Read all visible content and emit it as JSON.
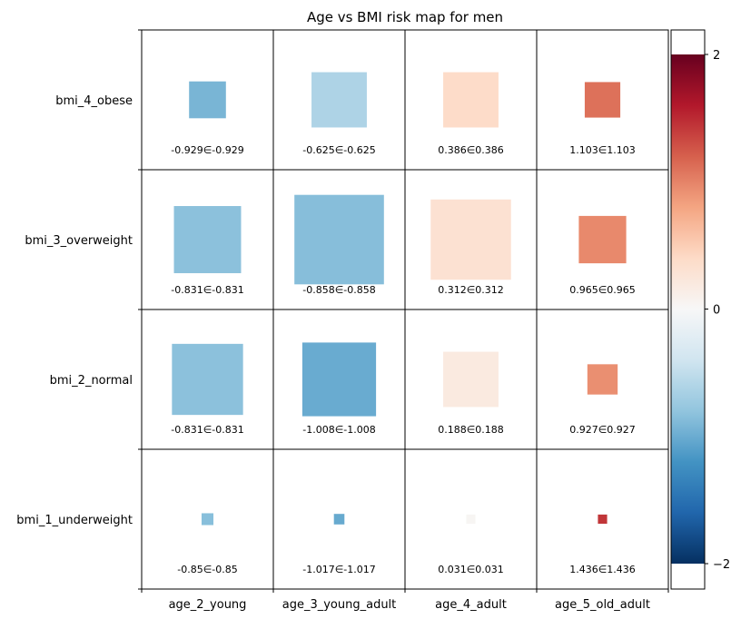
{
  "chart_data": {
    "type": "heatmap",
    "title": "Age vs BMI risk map for men",
    "xlabel": "",
    "ylabel": "",
    "x_categories": [
      "age_2_young",
      "age_3_young_adult",
      "age_4_adult",
      "age_5_old_adult"
    ],
    "y_categories": [
      "bmi_4_obese",
      "bmi_3_overweight",
      "bmi_2_normal",
      "bmi_1_underweight"
    ],
    "cells": [
      {
        "x": "age_2_young",
        "y": "bmi_4_obese",
        "value": -0.929,
        "label": "-0.929∈-0.929",
        "size": 0.28
      },
      {
        "x": "age_3_young_adult",
        "y": "bmi_4_obese",
        "value": -0.625,
        "label": "-0.625∈-0.625",
        "size": 0.42
      },
      {
        "x": "age_4_adult",
        "y": "bmi_4_obese",
        "value": 0.386,
        "label": "0.386∈0.386",
        "size": 0.42
      },
      {
        "x": "age_5_old_adult",
        "y": "bmi_4_obese",
        "value": 1.103,
        "label": "1.103∈1.103",
        "size": 0.27
      },
      {
        "x": "age_2_young",
        "y": "bmi_3_overweight",
        "value": -0.831,
        "label": "-0.831∈-0.831",
        "size": 0.51
      },
      {
        "x": "age_3_young_adult",
        "y": "bmi_3_overweight",
        "value": -0.858,
        "label": "-0.858∈-0.858",
        "size": 0.68
      },
      {
        "x": "age_4_adult",
        "y": "bmi_3_overweight",
        "value": 0.312,
        "label": "0.312∈0.312",
        "size": 0.61
      },
      {
        "x": "age_5_old_adult",
        "y": "bmi_3_overweight",
        "value": 0.965,
        "label": "0.965∈0.965",
        "size": 0.36
      },
      {
        "x": "age_2_young",
        "y": "bmi_2_normal",
        "value": -0.831,
        "label": "-0.831∈-0.831",
        "size": 0.54
      },
      {
        "x": "age_3_young_adult",
        "y": "bmi_2_normal",
        "value": -1.008,
        "label": "-1.008∈-1.008",
        "size": 0.56
      },
      {
        "x": "age_4_adult",
        "y": "bmi_2_normal",
        "value": 0.188,
        "label": "0.188∈0.188",
        "size": 0.42
      },
      {
        "x": "age_5_old_adult",
        "y": "bmi_2_normal",
        "value": 0.927,
        "label": "0.927∈0.927",
        "size": 0.23
      },
      {
        "x": "age_2_young",
        "y": "bmi_1_underweight",
        "value": -0.85,
        "label": "-0.85∈-0.85",
        "size": 0.09
      },
      {
        "x": "age_3_young_adult",
        "y": "bmi_1_underweight",
        "value": -1.017,
        "label": "-1.017∈-1.017",
        "size": 0.08
      },
      {
        "x": "age_4_adult",
        "y": "bmi_1_underweight",
        "value": 0.031,
        "label": "0.031∈0.031",
        "size": 0.07
      },
      {
        "x": "age_5_old_adult",
        "y": "bmi_1_underweight",
        "value": 1.436,
        "label": "1.436∈1.436",
        "size": 0.07
      }
    ],
    "colorbar": {
      "colormap": "RdBu_r",
      "vmin": -2,
      "vmax": 2,
      "ticks": [
        -2,
        0,
        2
      ],
      "tick_labels": [
        "−2",
        "0",
        "2"
      ],
      "placement": "right"
    },
    "grid": true,
    "legend": "none"
  }
}
